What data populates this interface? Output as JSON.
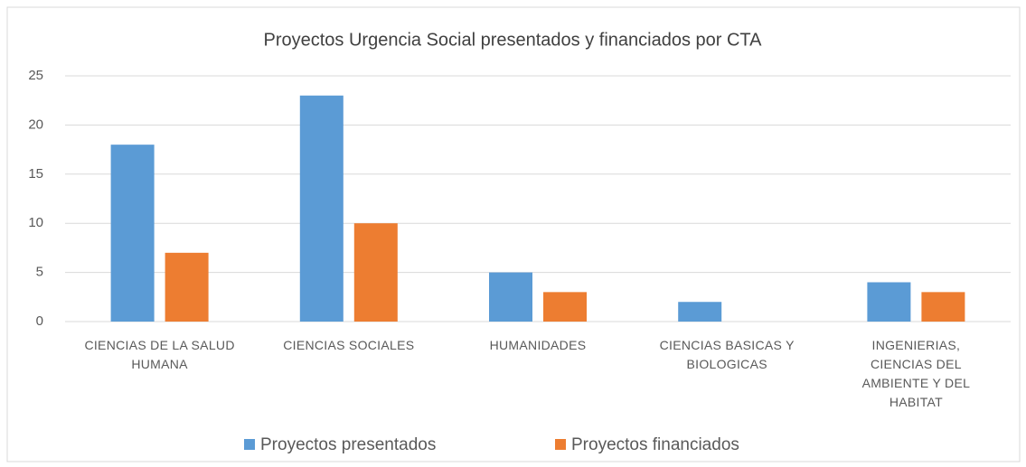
{
  "chart_data": {
    "type": "bar",
    "title": "Proyectos Urgencia Social presentados y financiados por CTA",
    "categories": [
      "CIENCIAS DE LA SALUD HUMANA",
      "CIENCIAS SOCIALES",
      "HUMANIDADES",
      "CIENCIAS BASICAS Y BIOLOGICAS",
      "INGENIERIAS, CIENCIAS DEL AMBIENTE Y DEL HABITAT"
    ],
    "series": [
      {
        "name": "Proyectos presentados",
        "color": "#5b9bd5",
        "values": [
          18,
          23,
          5,
          2,
          4
        ]
      },
      {
        "name": "Proyectos financiados",
        "color": "#ed7d31",
        "values": [
          7,
          10,
          3,
          0,
          3
        ]
      }
    ],
    "ylim": [
      0,
      25
    ],
    "yticks": [
      0,
      5,
      10,
      15,
      20,
      25
    ],
    "grid": true,
    "legend": "bottom"
  }
}
